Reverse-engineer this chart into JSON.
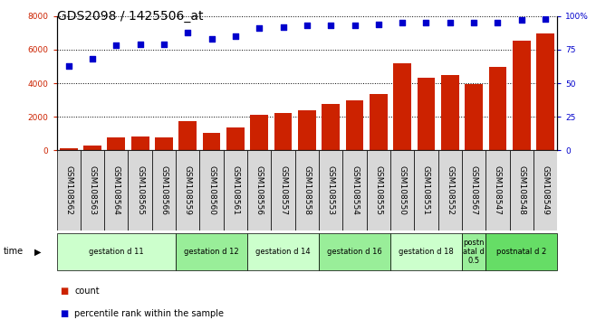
{
  "title": "GDS2098 / 1425506_at",
  "categories": [
    "GSM108562",
    "GSM108563",
    "GSM108564",
    "GSM108565",
    "GSM108566",
    "GSM108559",
    "GSM108560",
    "GSM108561",
    "GSM108556",
    "GSM108557",
    "GSM108558",
    "GSM108553",
    "GSM108554",
    "GSM108555",
    "GSM108550",
    "GSM108551",
    "GSM108552",
    "GSM108567",
    "GSM108547",
    "GSM108548",
    "GSM108549"
  ],
  "bar_values": [
    150,
    280,
    800,
    850,
    780,
    1750,
    1050,
    1350,
    2100,
    2250,
    2400,
    2750,
    3000,
    3350,
    5200,
    4300,
    4500,
    3950,
    4950,
    6550,
    6950
  ],
  "dot_values": [
    63,
    68,
    78,
    79,
    79,
    88,
    83,
    85,
    91,
    92,
    93,
    93,
    93,
    94,
    95,
    95,
    95,
    95,
    95,
    97,
    98
  ],
  "bar_color": "#cc2200",
  "dot_color": "#0000cc",
  "ylim_left": [
    0,
    8000
  ],
  "ylim_right": [
    0,
    100
  ],
  "yticks_left": [
    0,
    2000,
    4000,
    6000,
    8000
  ],
  "yticks_right": [
    0,
    25,
    50,
    75,
    100
  ],
  "groups": [
    {
      "label": "gestation d 11",
      "start": 0,
      "end": 5,
      "color": "#ccffcc"
    },
    {
      "label": "gestation d 12",
      "start": 5,
      "end": 8,
      "color": "#99ee99"
    },
    {
      "label": "gestation d 14",
      "start": 8,
      "end": 11,
      "color": "#ccffcc"
    },
    {
      "label": "gestation d 16",
      "start": 11,
      "end": 14,
      "color": "#99ee99"
    },
    {
      "label": "gestation d 18",
      "start": 14,
      "end": 17,
      "color": "#ccffcc"
    },
    {
      "label": "postn\natal d\n0.5",
      "start": 17,
      "end": 18,
      "color": "#99ee99"
    },
    {
      "label": "postnatal d 2",
      "start": 18,
      "end": 21,
      "color": "#66dd66"
    }
  ],
  "legend_items": [
    {
      "label": "count",
      "color": "#cc2200"
    },
    {
      "label": "percentile rank within the sample",
      "color": "#0000cc"
    }
  ],
  "background_color": "#ffffff",
  "plot_bg_color": "#ffffff",
  "xtick_bg_color": "#d8d8d8",
  "grid_color": "#000000",
  "title_fontsize": 10,
  "tick_fontsize": 6.5
}
